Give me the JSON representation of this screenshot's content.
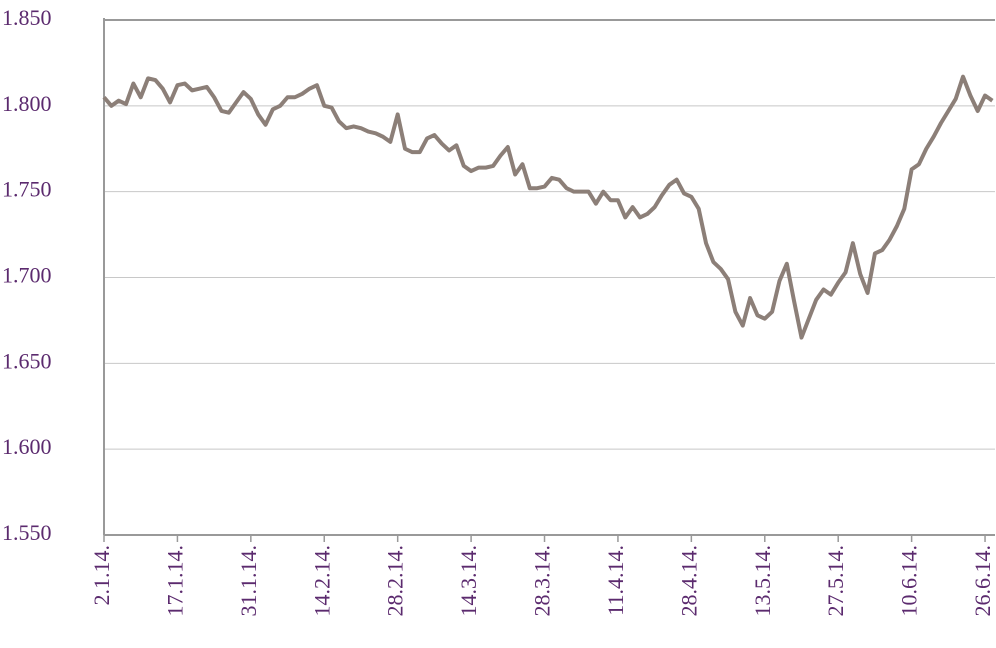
{
  "chart_data": {
    "type": "line",
    "categories": [
      "2.1.14.",
      null,
      null,
      null,
      null,
      null,
      null,
      null,
      null,
      null,
      "17.1.14.",
      null,
      null,
      null,
      null,
      null,
      null,
      null,
      null,
      null,
      "31.1.14.",
      null,
      null,
      null,
      null,
      null,
      null,
      null,
      null,
      null,
      "14.2.14.",
      null,
      null,
      null,
      null,
      null,
      null,
      null,
      null,
      null,
      "28.2.14.",
      null,
      null,
      null,
      null,
      null,
      null,
      null,
      null,
      null,
      "14.3.14.",
      null,
      null,
      null,
      null,
      null,
      null,
      null,
      null,
      null,
      "28.3.14.",
      null,
      null,
      null,
      null,
      null,
      null,
      null,
      null,
      null,
      "11.4.14.",
      null,
      null,
      null,
      null,
      null,
      null,
      null,
      null,
      null,
      "28.4.14.",
      null,
      null,
      null,
      null,
      null,
      null,
      null,
      null,
      null,
      "13.5.14.",
      null,
      null,
      null,
      null,
      null,
      null,
      null,
      null,
      null,
      "27.5.14.",
      null,
      null,
      null,
      null,
      null,
      null,
      null,
      null,
      null,
      "10.6.14.",
      null,
      null,
      null,
      null,
      null,
      null,
      null,
      null,
      null,
      "26.6.14.",
      null
    ],
    "values": [
      1805,
      1800,
      1803,
      1801,
      1813,
      1805,
      1816,
      1815,
      1810,
      1802,
      1812,
      1813,
      1809,
      1810,
      1811,
      1805,
      1797,
      1796,
      1802,
      1808,
      1804,
      1795,
      1789,
      1798,
      1800,
      1805,
      1805,
      1807,
      1810,
      1812,
      1800,
      1799,
      1791,
      1787,
      1788,
      1787,
      1785,
      1784,
      1782,
      1779,
      1795,
      1775,
      1773,
      1773,
      1781,
      1783,
      1778,
      1774,
      1777,
      1765,
      1762,
      1764,
      1764,
      1765,
      1771,
      1776,
      1760,
      1766,
      1752,
      1752,
      1753,
      1758,
      1757,
      1752,
      1750,
      1750,
      1750,
      1743,
      1750,
      1745,
      1745,
      1735,
      1741,
      1735,
      1737,
      1741,
      1748,
      1754,
      1757,
      1749,
      1747,
      1740,
      1720,
      1709,
      1705,
      1699,
      1680,
      1672,
      1688,
      1678,
      1676,
      1680,
      1698,
      1708,
      1686,
      1665,
      1676,
      1687,
      1693,
      1690,
      1697,
      1703,
      1720,
      1702,
      1691,
      1714,
      1716,
      1722,
      1730,
      1740,
      1763,
      1766,
      1775,
      1782,
      1790,
      1797,
      1804,
      1817,
      1806,
      1797,
      1806,
      1803
    ],
    "color": "#8c7f78",
    "ylim": [
      1550,
      1850
    ],
    "yticks": [
      {
        "value": 1550,
        "label": "1.550"
      },
      {
        "value": 1600,
        "label": "1.600"
      },
      {
        "value": 1650,
        "label": "1.650"
      },
      {
        "value": 1700,
        "label": "1.700"
      },
      {
        "value": 1750,
        "label": "1.750"
      },
      {
        "value": 1800,
        "label": "1.800"
      },
      {
        "value": 1850,
        "label": "1.850"
      }
    ],
    "grid": true
  }
}
